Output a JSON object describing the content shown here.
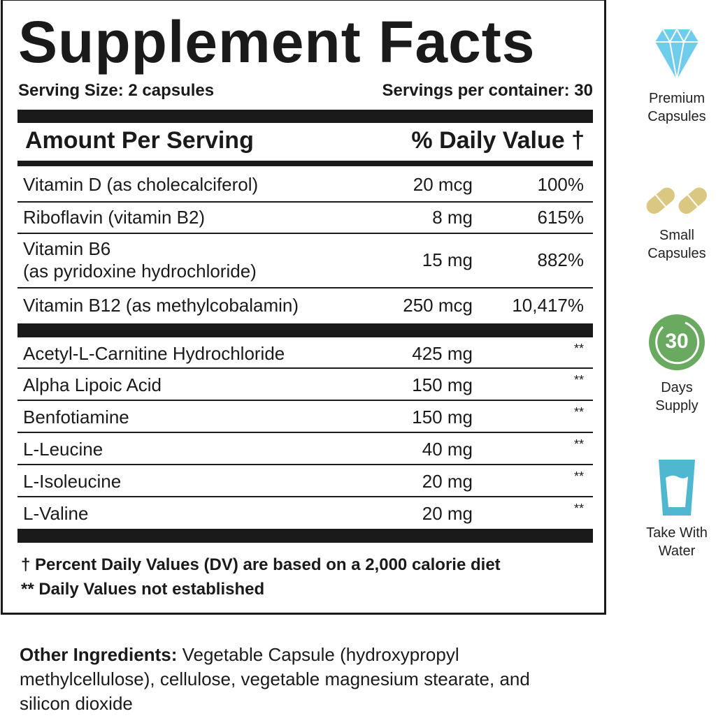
{
  "panel": {
    "title": "Supplement Facts",
    "serving_size": "Serving Size: 2 capsules",
    "servings_per_container": "Servings per container: 30",
    "header_amount": "Amount Per Serving",
    "header_dv": "% Daily Value †",
    "vitamins": [
      {
        "name": "Vitamin D (as cholecalciferol)",
        "amount": "20 mcg",
        "dv": "100%"
      },
      {
        "name": "Riboflavin (vitamin B2)",
        "amount": "8 mg",
        "dv": "615%"
      },
      {
        "name_line1": "Vitamin B6",
        "name_line2": "(as pyridoxine hydrochloride)",
        "amount": "15 mg",
        "dv": "882%"
      },
      {
        "name": "Vitamin B12 (as methylcobalamin)",
        "amount": "250 mcg",
        "dv": "10,417%"
      }
    ],
    "others": [
      {
        "name": "Acetyl-L-Carnitine Hydrochloride",
        "amount": "425 mg",
        "dv": "**"
      },
      {
        "name": "Alpha Lipoic Acid",
        "amount": "150 mg",
        "dv": "**"
      },
      {
        "name": "Benfotiamine",
        "amount": "150 mg",
        "dv": "**"
      },
      {
        "name": "L-Leucine",
        "amount": "40 mg",
        "dv": "**"
      },
      {
        "name": "L-Isoleucine",
        "amount": "20 mg",
        "dv": "**"
      },
      {
        "name": "L-Valine",
        "amount": "20 mg",
        "dv": "**"
      }
    ],
    "footnote1": "† Percent Daily Values (DV) are based on a 2,000 calorie diet",
    "footnote2": "** Daily Values not established"
  },
  "other_ingredients": {
    "label": "Other Ingredients:",
    "text": " Vegetable Capsule (hydroxypropyl methylcellulose), cellulose, vegetable magnesium stearate, and silicon dioxide"
  },
  "features": [
    {
      "icon": "diamond-icon",
      "line1": "Premium",
      "line2": "Capsules",
      "color": "#6fcdeb"
    },
    {
      "icon": "capsules-icon",
      "line1": "Small",
      "line2": "Capsules",
      "color": "#d9c782"
    },
    {
      "icon": "calendar-30-icon",
      "badge": "30",
      "line1": "Days",
      "line2": "Supply",
      "color": "#6aa960"
    },
    {
      "icon": "water-glass-icon",
      "line1": "Take With",
      "line2": "Water",
      "color": "#4fb8d0"
    }
  ]
}
